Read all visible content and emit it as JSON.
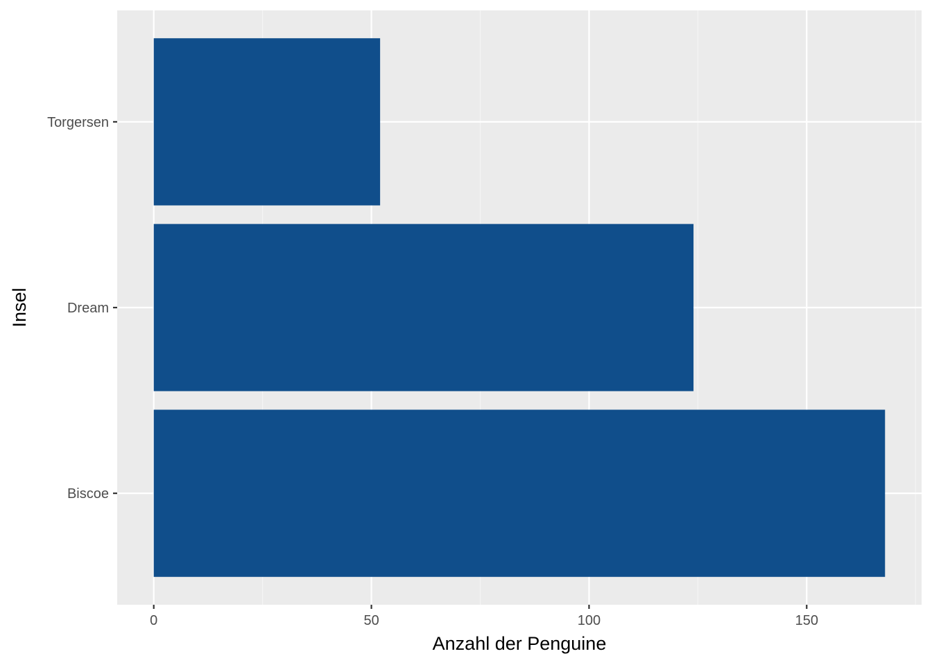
{
  "colors": {
    "panel_background": "#ebebeb",
    "grid_major": "#ffffff",
    "grid_minor": "#f5f5f5",
    "bar_fill": "#104e8b",
    "tick_text": "#4d4d4d",
    "tick_mark": "#333333",
    "axis_title": "#000000"
  },
  "chart_data": {
    "type": "bar",
    "orientation": "horizontal",
    "categories": [
      "Biscoe",
      "Dream",
      "Torgersen"
    ],
    "values": [
      168,
      124,
      52
    ],
    "xlabel": "Anzahl der Penguine",
    "ylabel": "Insel",
    "xlim": [
      -8.4,
      176.4
    ],
    "x_ticks": [
      0,
      50,
      100,
      150
    ],
    "x_tick_labels": [
      "0",
      "50",
      "100",
      "150"
    ],
    "x_minor_ticks": [
      25,
      75,
      125,
      175
    ],
    "grid": true,
    "legend": "none"
  }
}
